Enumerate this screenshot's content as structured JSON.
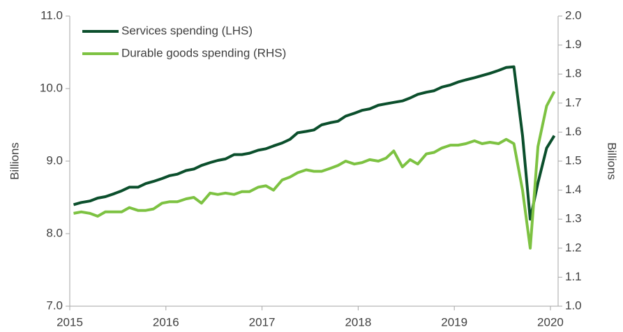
{
  "chart_data": {
    "type": "line",
    "y_label": "Billions",
    "y2_label": "Billions",
    "legend": "upper left",
    "x": [
      2015.04,
      2015.12,
      2015.21,
      2015.29,
      2015.37,
      2015.46,
      2015.54,
      2015.62,
      2015.71,
      2015.79,
      2015.87,
      2015.96,
      2016.04,
      2016.12,
      2016.21,
      2016.29,
      2016.37,
      2016.46,
      2016.54,
      2016.62,
      2016.71,
      2016.79,
      2016.87,
      2016.96,
      2017.04,
      2017.12,
      2017.21,
      2017.29,
      2017.37,
      2017.46,
      2017.54,
      2017.62,
      2017.71,
      2017.79,
      2017.87,
      2017.96,
      2018.04,
      2018.12,
      2018.21,
      2018.29,
      2018.37,
      2018.46,
      2018.54,
      2018.62,
      2018.71,
      2018.79,
      2018.87,
      2018.96,
      2019.04,
      2019.12,
      2019.21,
      2019.29,
      2019.37,
      2019.46,
      2019.54,
      2019.62,
      2019.71,
      2019.79,
      2019.87,
      2019.96,
      2020.04
    ],
    "series": [
      {
        "name": "Services spending (LHS)",
        "color": "#0b4f2c",
        "axis": "y",
        "values": [
          8.4,
          8.43,
          8.45,
          8.49,
          8.51,
          8.55,
          8.59,
          8.64,
          8.64,
          8.69,
          8.72,
          8.76,
          8.8,
          8.82,
          8.87,
          8.89,
          8.94,
          8.98,
          9.01,
          9.03,
          9.09,
          9.09,
          9.11,
          9.15,
          9.17,
          9.21,
          9.25,
          9.3,
          9.39,
          9.41,
          9.43,
          9.5,
          9.53,
          9.55,
          9.62,
          9.66,
          9.7,
          9.72,
          9.77,
          9.79,
          9.81,
          9.83,
          9.87,
          9.92,
          9.95,
          9.97,
          10.02,
          10.05,
          10.09,
          10.12,
          10.15,
          10.18,
          10.21,
          10.25,
          10.29,
          10.3,
          9.35,
          8.2,
          8.7,
          9.18,
          9.35
        ]
      },
      {
        "name": "Durable goods spending (RHS)",
        "color": "#7dc242",
        "axis": "y2",
        "values": [
          1.32,
          1.325,
          1.32,
          1.31,
          1.325,
          1.325,
          1.325,
          1.34,
          1.33,
          1.33,
          1.335,
          1.355,
          1.36,
          1.36,
          1.37,
          1.375,
          1.355,
          1.39,
          1.385,
          1.39,
          1.385,
          1.395,
          1.395,
          1.41,
          1.415,
          1.4,
          1.435,
          1.445,
          1.46,
          1.47,
          1.465,
          1.465,
          1.475,
          1.485,
          1.5,
          1.49,
          1.495,
          1.505,
          1.5,
          1.51,
          1.535,
          1.48,
          1.505,
          1.49,
          1.525,
          1.53,
          1.545,
          1.555,
          1.555,
          1.56,
          1.57,
          1.56,
          1.565,
          1.56,
          1.575,
          1.56,
          1.4,
          1.2,
          1.55,
          1.69,
          1.74
        ]
      }
    ],
    "xlim": [
      2015,
      2020.08
    ],
    "xticks": [
      2015,
      2016,
      2017,
      2018,
      2019,
      2020
    ],
    "ylim": [
      7,
      11
    ],
    "yticks": [
      {
        "value": 7,
        "label": "7.0"
      },
      {
        "value": 8,
        "label": "8.0"
      },
      {
        "value": 9,
        "label": "9.0"
      },
      {
        "value": 10,
        "label": "10.0"
      },
      {
        "value": 11,
        "label": "11.0"
      }
    ],
    "y2lim": [
      1,
      2
    ],
    "y2ticks": [
      {
        "value": 1,
        "label": "1.0"
      },
      1.1,
      1.2,
      1.3,
      1.4,
      1.5,
      1.6,
      1.7,
      1.8,
      1.9,
      {
        "value": 2,
        "label": "2.0"
      }
    ]
  }
}
